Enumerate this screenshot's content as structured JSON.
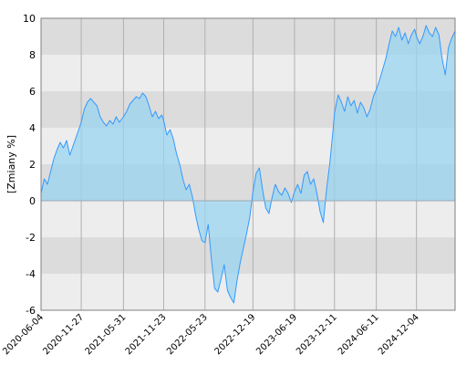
{
  "chart_data": {
    "type": "area",
    "title": "",
    "xlabel": "",
    "ylabel": "[Zmiany %]",
    "ylim": [
      -6,
      10
    ],
    "y_ticks": [
      -6,
      -4,
      -2,
      0,
      2,
      4,
      6,
      8,
      10
    ],
    "x_start": "2020-06-04",
    "x_end": "2025-05-22",
    "x_tick_labels": [
      "2020-06-04",
      "2020-11-27",
      "2021-05-31",
      "2021-11-23",
      "2022-05-23",
      "2022-12-19",
      "2023-06-19",
      "2023-12-11",
      "2024-06-11",
      "2024-12-04"
    ],
    "grid": true,
    "legend": "none",
    "colors": {
      "line": "#3399ff",
      "fill_above": "#99d4f0",
      "fill_below": "#aeddf4",
      "band_dark": "#dcdcdc",
      "band_light": "#ededed",
      "grid_vertical": "#b0b0b0",
      "axis": "#808080"
    },
    "series": [
      {
        "values": [
          [
            "2020-06-04",
            0.4
          ],
          [
            "2020-06-18",
            1.2
          ],
          [
            "2020-07-02",
            0.9
          ],
          [
            "2020-07-16",
            1.6
          ],
          [
            "2020-07-30",
            2.3
          ],
          [
            "2020-08-13",
            2.8
          ],
          [
            "2020-08-27",
            3.2
          ],
          [
            "2020-09-10",
            2.9
          ],
          [
            "2020-09-24",
            3.3
          ],
          [
            "2020-10-08",
            2.5
          ],
          [
            "2020-10-22",
            3.0
          ],
          [
            "2020-11-05",
            3.5
          ],
          [
            "2020-11-19",
            4.0
          ],
          [
            "2020-11-27",
            4.3
          ],
          [
            "2020-12-10",
            5.0
          ],
          [
            "2020-12-24",
            5.4
          ],
          [
            "2021-01-07",
            5.6
          ],
          [
            "2021-01-21",
            5.4
          ],
          [
            "2021-02-04",
            5.2
          ],
          [
            "2021-02-18",
            4.6
          ],
          [
            "2021-03-04",
            4.3
          ],
          [
            "2021-03-18",
            4.1
          ],
          [
            "2021-04-01",
            4.4
          ],
          [
            "2021-04-15",
            4.2
          ],
          [
            "2021-04-29",
            4.6
          ],
          [
            "2021-05-13",
            4.3
          ],
          [
            "2021-05-31",
            4.6
          ],
          [
            "2021-06-14",
            4.9
          ],
          [
            "2021-06-28",
            5.3
          ],
          [
            "2021-07-12",
            5.5
          ],
          [
            "2021-07-26",
            5.7
          ],
          [
            "2021-08-09",
            5.6
          ],
          [
            "2021-08-23",
            5.9
          ],
          [
            "2021-09-06",
            5.7
          ],
          [
            "2021-09-20",
            5.2
          ],
          [
            "2021-10-04",
            4.6
          ],
          [
            "2021-10-18",
            4.9
          ],
          [
            "2021-11-01",
            4.5
          ],
          [
            "2021-11-15",
            4.7
          ],
          [
            "2021-11-23",
            4.4
          ],
          [
            "2021-12-07",
            3.6
          ],
          [
            "2021-12-21",
            3.9
          ],
          [
            "2022-01-04",
            3.4
          ],
          [
            "2022-01-18",
            2.6
          ],
          [
            "2022-02-01",
            2.0
          ],
          [
            "2022-02-15",
            1.2
          ],
          [
            "2022-03-01",
            0.6
          ],
          [
            "2022-03-15",
            0.9
          ],
          [
            "2022-03-29",
            0.2
          ],
          [
            "2022-04-12",
            -0.8
          ],
          [
            "2022-04-26",
            -1.6
          ],
          [
            "2022-05-10",
            -2.2
          ],
          [
            "2022-05-23",
            -2.3
          ],
          [
            "2022-06-06",
            -1.3
          ],
          [
            "2022-06-20",
            -3.2
          ],
          [
            "2022-07-04",
            -4.8
          ],
          [
            "2022-07-18",
            -5.0
          ],
          [
            "2022-08-01",
            -4.3
          ],
          [
            "2022-08-15",
            -3.5
          ],
          [
            "2022-08-29",
            -4.9
          ],
          [
            "2022-09-12",
            -5.3
          ],
          [
            "2022-09-26",
            -5.6
          ],
          [
            "2022-10-10",
            -4.4
          ],
          [
            "2022-10-24",
            -3.4
          ],
          [
            "2022-11-07",
            -2.6
          ],
          [
            "2022-11-21",
            -1.8
          ],
          [
            "2022-12-05",
            -0.9
          ],
          [
            "2022-12-19",
            0.5
          ],
          [
            "2023-01-02",
            1.5
          ],
          [
            "2023-01-16",
            1.8
          ],
          [
            "2023-01-30",
            0.6
          ],
          [
            "2023-02-13",
            -0.4
          ],
          [
            "2023-02-27",
            -0.7
          ],
          [
            "2023-03-13",
            0.2
          ],
          [
            "2023-03-27",
            0.9
          ],
          [
            "2023-04-10",
            0.5
          ],
          [
            "2023-04-24",
            0.3
          ],
          [
            "2023-05-08",
            0.7
          ],
          [
            "2023-05-22",
            0.4
          ],
          [
            "2023-06-05",
            -0.1
          ],
          [
            "2023-06-19",
            0.5
          ],
          [
            "2023-07-03",
            0.9
          ],
          [
            "2023-07-17",
            0.4
          ],
          [
            "2023-07-31",
            1.4
          ],
          [
            "2023-08-14",
            1.6
          ],
          [
            "2023-08-28",
            0.9
          ],
          [
            "2023-09-11",
            1.2
          ],
          [
            "2023-09-25",
            0.4
          ],
          [
            "2023-10-09",
            -0.6
          ],
          [
            "2023-10-23",
            -1.2
          ],
          [
            "2023-11-06",
            0.6
          ],
          [
            "2023-11-20",
            2.0
          ],
          [
            "2023-12-04",
            3.8
          ],
          [
            "2023-12-11",
            4.8
          ],
          [
            "2023-12-27",
            5.8
          ],
          [
            "2024-01-10",
            5.4
          ],
          [
            "2024-01-24",
            4.9
          ],
          [
            "2024-02-07",
            5.7
          ],
          [
            "2024-02-21",
            5.2
          ],
          [
            "2024-03-06",
            5.5
          ],
          [
            "2024-03-20",
            4.8
          ],
          [
            "2024-04-03",
            5.4
          ],
          [
            "2024-04-17",
            5.1
          ],
          [
            "2024-05-01",
            4.6
          ],
          [
            "2024-05-15",
            5.0
          ],
          [
            "2024-05-29",
            5.7
          ],
          [
            "2024-06-11",
            6.1
          ],
          [
            "2024-06-25",
            6.6
          ],
          [
            "2024-07-09",
            7.2
          ],
          [
            "2024-07-23",
            7.8
          ],
          [
            "2024-08-06",
            8.6
          ],
          [
            "2024-08-20",
            9.3
          ],
          [
            "2024-09-03",
            9.0
          ],
          [
            "2024-09-17",
            9.5
          ],
          [
            "2024-10-01",
            8.8
          ],
          [
            "2024-10-15",
            9.2
          ],
          [
            "2024-10-29",
            8.6
          ],
          [
            "2024-11-12",
            9.1
          ],
          [
            "2024-11-26",
            9.4
          ],
          [
            "2024-12-04",
            9.0
          ],
          [
            "2024-12-18",
            8.6
          ],
          [
            "2025-01-01",
            9.0
          ],
          [
            "2025-01-15",
            9.6
          ],
          [
            "2025-01-29",
            9.2
          ],
          [
            "2025-02-12",
            9.0
          ],
          [
            "2025-02-26",
            9.5
          ],
          [
            "2025-03-12",
            9.1
          ],
          [
            "2025-03-26",
            7.8
          ],
          [
            "2025-04-09",
            6.9
          ],
          [
            "2025-04-23",
            8.4
          ],
          [
            "2025-05-07",
            8.9
          ],
          [
            "2025-05-22",
            9.3
          ]
        ]
      }
    ]
  }
}
